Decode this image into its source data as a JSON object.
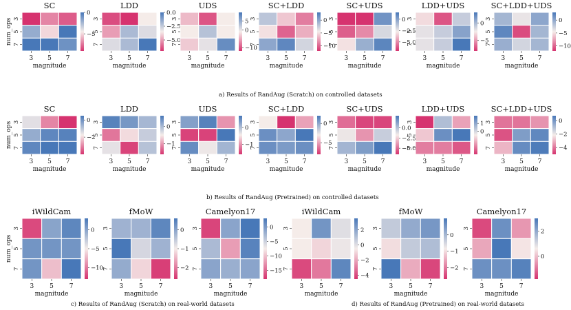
{
  "figure": {
    "captions": {
      "a": "a) Results of RandAug (Scratch) on controlled datasets",
      "b": "b) Results of RandAug (Pretrained) on controlled datasets",
      "c": "c) Results of RandAug (Scratch) on real-world datasets",
      "d": "d) Results of RandAug (Pretrained) on real-world datasets"
    },
    "colors": {
      "neg": "#d6336f",
      "mid": "#f5ece9",
      "pos": "#4878b8"
    }
  },
  "chart_data": [
    {
      "type": "heatmap",
      "group": "a",
      "title": "SC",
      "xlabel": "magnitude",
      "ylabel": "num_ops",
      "x": [
        "3",
        "5",
        "7"
      ],
      "y": [
        "3",
        "5",
        "7"
      ],
      "values": [
        [
          -9,
          -7,
          -8
        ],
        [
          -2,
          -5,
          0
        ],
        [
          0,
          0,
          -1
        ]
      ],
      "vmin": -9,
      "vmax": 0,
      "ticks": [
        "0",
        "−5"
      ],
      "tick_values": [
        0,
        -5
      ]
    },
    {
      "type": "heatmap",
      "group": "a",
      "title": "LDD",
      "xlabel": "magnitude",
      "ylabel": "",
      "x": [
        "3",
        "5",
        "7"
      ],
      "y": [
        "3",
        "5",
        "7"
      ],
      "values": [
        [
          -6.5,
          -7,
          -3.5
        ],
        [
          -5,
          -2,
          -3
        ],
        [
          -3,
          -2,
          0
        ]
      ],
      "vmin": -7,
      "vmax": 0,
      "ticks": [
        "0.0",
        "−2.5",
        "−5.0"
      ],
      "tick_values": [
        0,
        -2.5,
        -5
      ]
    },
    {
      "type": "heatmap",
      "group": "a",
      "title": "UDS",
      "xlabel": "magnitude",
      "ylabel": "",
      "x": [
        "3",
        "5",
        "7"
      ],
      "y": [
        "3",
        "5",
        "7"
      ],
      "values": [
        [
          -4,
          -10,
          -1
        ],
        [
          -1,
          3,
          -1
        ],
        [
          -3,
          0,
          8
        ]
      ],
      "vmin": -12,
      "vmax": 10,
      "ticks": [
        "0",
        "5",
        "−10"
      ],
      "tick_values": [
        0,
        5,
        -10
      ]
    },
    {
      "type": "heatmap",
      "group": "a",
      "title": "SC+LDD",
      "xlabel": "magnitude",
      "ylabel": "",
      "x": [
        "3",
        "5",
        "7"
      ],
      "y": [
        "3",
        "5",
        "7"
      ],
      "values": [
        [
          -2,
          -6,
          -9
        ],
        [
          -5,
          -10,
          -7
        ],
        [
          0,
          2,
          -3
        ]
      ],
      "vmin": -12,
      "vmax": 3,
      "ticks": [
        "0",
        "−5",
        "−10"
      ],
      "tick_values": [
        0,
        -5,
        -10
      ]
    },
    {
      "type": "heatmap",
      "group": "a",
      "title": "SC+UDS",
      "xlabel": "magnitude",
      "ylabel": "",
      "x": [
        "3",
        "5",
        "7"
      ],
      "y": [
        "3",
        "5",
        "7"
      ],
      "values": [
        [
          -7,
          -7,
          0.5
        ],
        [
          -6,
          -5,
          -2
        ],
        [
          -3,
          -0.5,
          1
        ]
      ],
      "vmin": -7,
      "vmax": 1.5,
      "ticks": [
        "0",
        "−2.5",
        "−5.0"
      ],
      "tick_values": [
        0,
        -2.5,
        -5
      ]
    },
    {
      "type": "heatmap",
      "group": "a",
      "title": "LDD+UDS",
      "xlabel": "magnitude",
      "ylabel": "",
      "x": [
        "3",
        "5",
        "7"
      ],
      "y": [
        "3",
        "5",
        "7"
      ],
      "values": [
        [
          -3,
          -7,
          -1
        ],
        [
          -2,
          -1,
          1
        ],
        [
          -2,
          -1,
          3
        ]
      ],
      "vmin": -8,
      "vmax": 3,
      "ticks": [
        "0",
        "−5"
      ],
      "tick_values": [
        0,
        -5
      ]
    },
    {
      "type": "heatmap",
      "group": "a",
      "title": "SC+LDD+UDS",
      "xlabel": "magnitude",
      "ylabel": "",
      "x": [
        "3",
        "5",
        "7"
      ],
      "y": [
        "3",
        "5",
        "7"
      ],
      "values": [
        [
          -1,
          -4,
          0
        ],
        [
          2,
          -11,
          -1
        ],
        [
          -0.5,
          -3,
          -1
        ]
      ],
      "vmin": -12,
      "vmax": 3,
      "ticks": [
        "0",
        "−5",
        "−10"
      ],
      "tick_values": [
        0,
        -5,
        -10
      ]
    },
    {
      "type": "heatmap",
      "group": "b",
      "title": "SC",
      "xlabel": "magnitude",
      "ylabel": "num_ops",
      "x": [
        "3",
        "5",
        "7"
      ],
      "y": [
        "3",
        "5",
        "7"
      ],
      "values": [
        [
          -1.5,
          -3,
          -4
        ],
        [
          -0.5,
          0.2,
          0.3
        ],
        [
          0.2,
          0.5,
          0.5
        ]
      ],
      "vmin": -4,
      "vmax": 0.5,
      "ticks": [
        "0",
        "−2"
      ],
      "tick_values": [
        0,
        -2
      ]
    },
    {
      "type": "heatmap",
      "group": "b",
      "title": "LDD",
      "xlabel": "magnitude",
      "ylabel": "",
      "x": [
        "3",
        "5",
        "7"
      ],
      "y": [
        "3",
        "5",
        "7"
      ],
      "values": [
        [
          0.5,
          0.3,
          0
        ],
        [
          -1.2,
          -0.6,
          -0.2
        ],
        [
          -0.4,
          -1.5,
          -0.1
        ]
      ],
      "vmin": -1.6,
      "vmax": 0.6,
      "ticks": [
        "0",
        "−1"
      ],
      "tick_values": [
        0,
        -1
      ]
    },
    {
      "type": "heatmap",
      "group": "b",
      "title": "UDS",
      "xlabel": "magnitude",
      "ylabel": "",
      "x": [
        "3",
        "5",
        "7"
      ],
      "y": [
        "3",
        "5",
        "7"
      ],
      "values": [
        [
          0.3,
          0.6,
          -1
        ],
        [
          -1.5,
          -1.5,
          0.7
        ],
        [
          0.5,
          -0.4,
          0.1
        ]
      ],
      "vmin": -1.6,
      "vmax": 0.7,
      "ticks": [
        "0",
        "−1"
      ],
      "tick_values": [
        0,
        -1
      ]
    },
    {
      "type": "heatmap",
      "group": "b",
      "title": "SC+LDD",
      "xlabel": "magnitude",
      "ylabel": "",
      "x": [
        "3",
        "5",
        "7"
      ],
      "y": [
        "3",
        "5",
        "7"
      ],
      "values": [
        [
          -3,
          -8,
          -5
        ],
        [
          1,
          0,
          2
        ],
        [
          1,
          0.5,
          1
        ]
      ],
      "vmin": -8,
      "vmax": 2,
      "ticks": [
        "0",
        "−5"
      ],
      "tick_values": [
        0,
        -5
      ]
    },
    {
      "type": "heatmap",
      "group": "b",
      "title": "SC+UDS",
      "xlabel": "magnitude",
      "ylabel": "",
      "x": [
        "3",
        "5",
        "7"
      ],
      "y": [
        "3",
        "5",
        "7"
      ],
      "values": [
        [
          -5,
          -6,
          -6
        ],
        [
          -1.5,
          -4,
          -0.5
        ],
        [
          0.5,
          1.5,
          3
        ]
      ],
      "vmin": -6.5,
      "vmax": 3,
      "ticks": [
        "0.0",
        "−2.5",
        "−5.0"
      ],
      "tick_values": [
        0,
        -2.5,
        -5
      ]
    },
    {
      "type": "heatmap",
      "group": "b",
      "title": "LDD+UDS",
      "xlabel": "magnitude",
      "ylabel": "",
      "x": [
        "3",
        "5",
        "7"
      ],
      "y": [
        "3",
        "5",
        "7"
      ],
      "values": [
        [
          -3,
          0.5,
          -1.5
        ],
        [
          -1,
          1.5,
          2
        ],
        [
          -2,
          -2,
          -2.5
        ]
      ],
      "vmin": -3,
      "vmax": 2,
      "ticks": [
        "0",
        "1"
      ],
      "tick_values": [
        0,
        1
      ]
    },
    {
      "type": "heatmap",
      "group": "b",
      "title": "SC+LDD+UDS",
      "xlabel": "magnitude",
      "ylabel": "",
      "x": [
        "3",
        "5",
        "7"
      ],
      "y": [
        "3",
        "5",
        "7"
      ],
      "values": [
        [
          -4,
          -4,
          -3.5
        ],
        [
          -4.5,
          -0.2,
          0.3
        ],
        [
          -3,
          0.2,
          0.6
        ]
      ],
      "vmin": -5,
      "vmax": 0.7,
      "ticks": [
        "0",
        "−2",
        "−4"
      ],
      "tick_values": [
        0,
        -2,
        -4
      ]
    },
    {
      "type": "heatmap",
      "group": "c",
      "title": "iWildCam",
      "xlabel": "magnitude",
      "ylabel": "num_ops",
      "x": [
        "3",
        "5",
        "7"
      ],
      "y": [
        "3",
        "5",
        "7"
      ],
      "values": [
        [
          -12,
          0,
          2
        ],
        [
          1,
          1,
          1
        ],
        [
          1,
          -7,
          3
        ]
      ],
      "vmin": -13,
      "vmax": 3,
      "ticks": [
        "0",
        "−5",
        "−10"
      ],
      "tick_values": [
        0,
        -5,
        -10
      ]
    },
    {
      "type": "heatmap",
      "group": "c",
      "title": "fMoW",
      "xlabel": "magnitude",
      "ylabel": "",
      "x": [
        "3",
        "5",
        "7"
      ],
      "y": [
        "3",
        "5",
        "7"
      ],
      "values": [
        [
          -0.2,
          -0.2,
          0.4
        ],
        [
          0.6,
          -0.7,
          -0.2
        ],
        [
          -0.1,
          -1.2,
          -2.5
        ]
      ],
      "vmin": -2.6,
      "vmax": 0.6,
      "ticks": [
        "0",
        "−1",
        "−2"
      ],
      "tick_values": [
        0,
        -1,
        -2
      ]
    },
    {
      "type": "heatmap",
      "group": "c",
      "title": "Camelyon17",
      "xlabel": "magnitude",
      "ylabel": "",
      "x": [
        "3",
        "5",
        "7"
      ],
      "y": [
        "3",
        "5",
        "7"
      ],
      "values": [
        [
          -17,
          -1,
          3
        ],
        [
          -3,
          -12,
          2
        ],
        [
          -1,
          -2,
          -1
        ]
      ],
      "vmin": -18,
      "vmax": 3,
      "ticks": [
        "0",
        "−5",
        "−10",
        "−15"
      ],
      "tick_values": [
        0,
        -5,
        -10,
        -15
      ]
    },
    {
      "type": "heatmap",
      "group": "d",
      "title": "iWildCam",
      "xlabel": "magnitude",
      "ylabel": "",
      "x": [
        "3",
        "5",
        "7"
      ],
      "y": [
        "3",
        "5",
        "7"
      ],
      "values": [
        [
          -0.5,
          2.5,
          0
        ],
        [
          -0.5,
          -1,
          -0.3
        ],
        [
          -4,
          -3,
          3
        ]
      ],
      "vmin": -4.5,
      "vmax": 3.5,
      "ticks": [
        "2",
        "0",
        "−2",
        "−4"
      ],
      "tick_values": [
        2,
        0,
        -2,
        -4
      ]
    },
    {
      "type": "heatmap",
      "group": "d",
      "title": "fMoW",
      "xlabel": "magnitude",
      "ylabel": "",
      "x": [
        "3",
        "5",
        "7"
      ],
      "y": [
        "3",
        "5",
        "7"
      ],
      "values": [
        [
          -0.3,
          0.2,
          0.5
        ],
        [
          -1,
          -0.3,
          -0.1
        ],
        [
          1,
          -1.5,
          -2.5
        ]
      ],
      "vmin": -2.7,
      "vmax": 1,
      "ticks": [
        "0",
        "−1",
        "−2"
      ],
      "tick_values": [
        0,
        -1,
        -2
      ]
    },
    {
      "type": "heatmap",
      "group": "d",
      "title": "Camelyon17",
      "xlabel": "magnitude",
      "ylabel": "",
      "x": [
        "3",
        "5",
        "7"
      ],
      "y": [
        "3",
        "5",
        "7"
      ],
      "values": [
        [
          -1.5,
          2.5,
          -0.5
        ],
        [
          -0.3,
          3,
          0.5
        ],
        [
          2.5,
          2.5,
          2.8
        ]
      ],
      "vmin": -1.8,
      "vmax": 3,
      "ticks": [
        "2",
        "0"
      ],
      "tick_values": [
        2,
        0
      ]
    }
  ]
}
